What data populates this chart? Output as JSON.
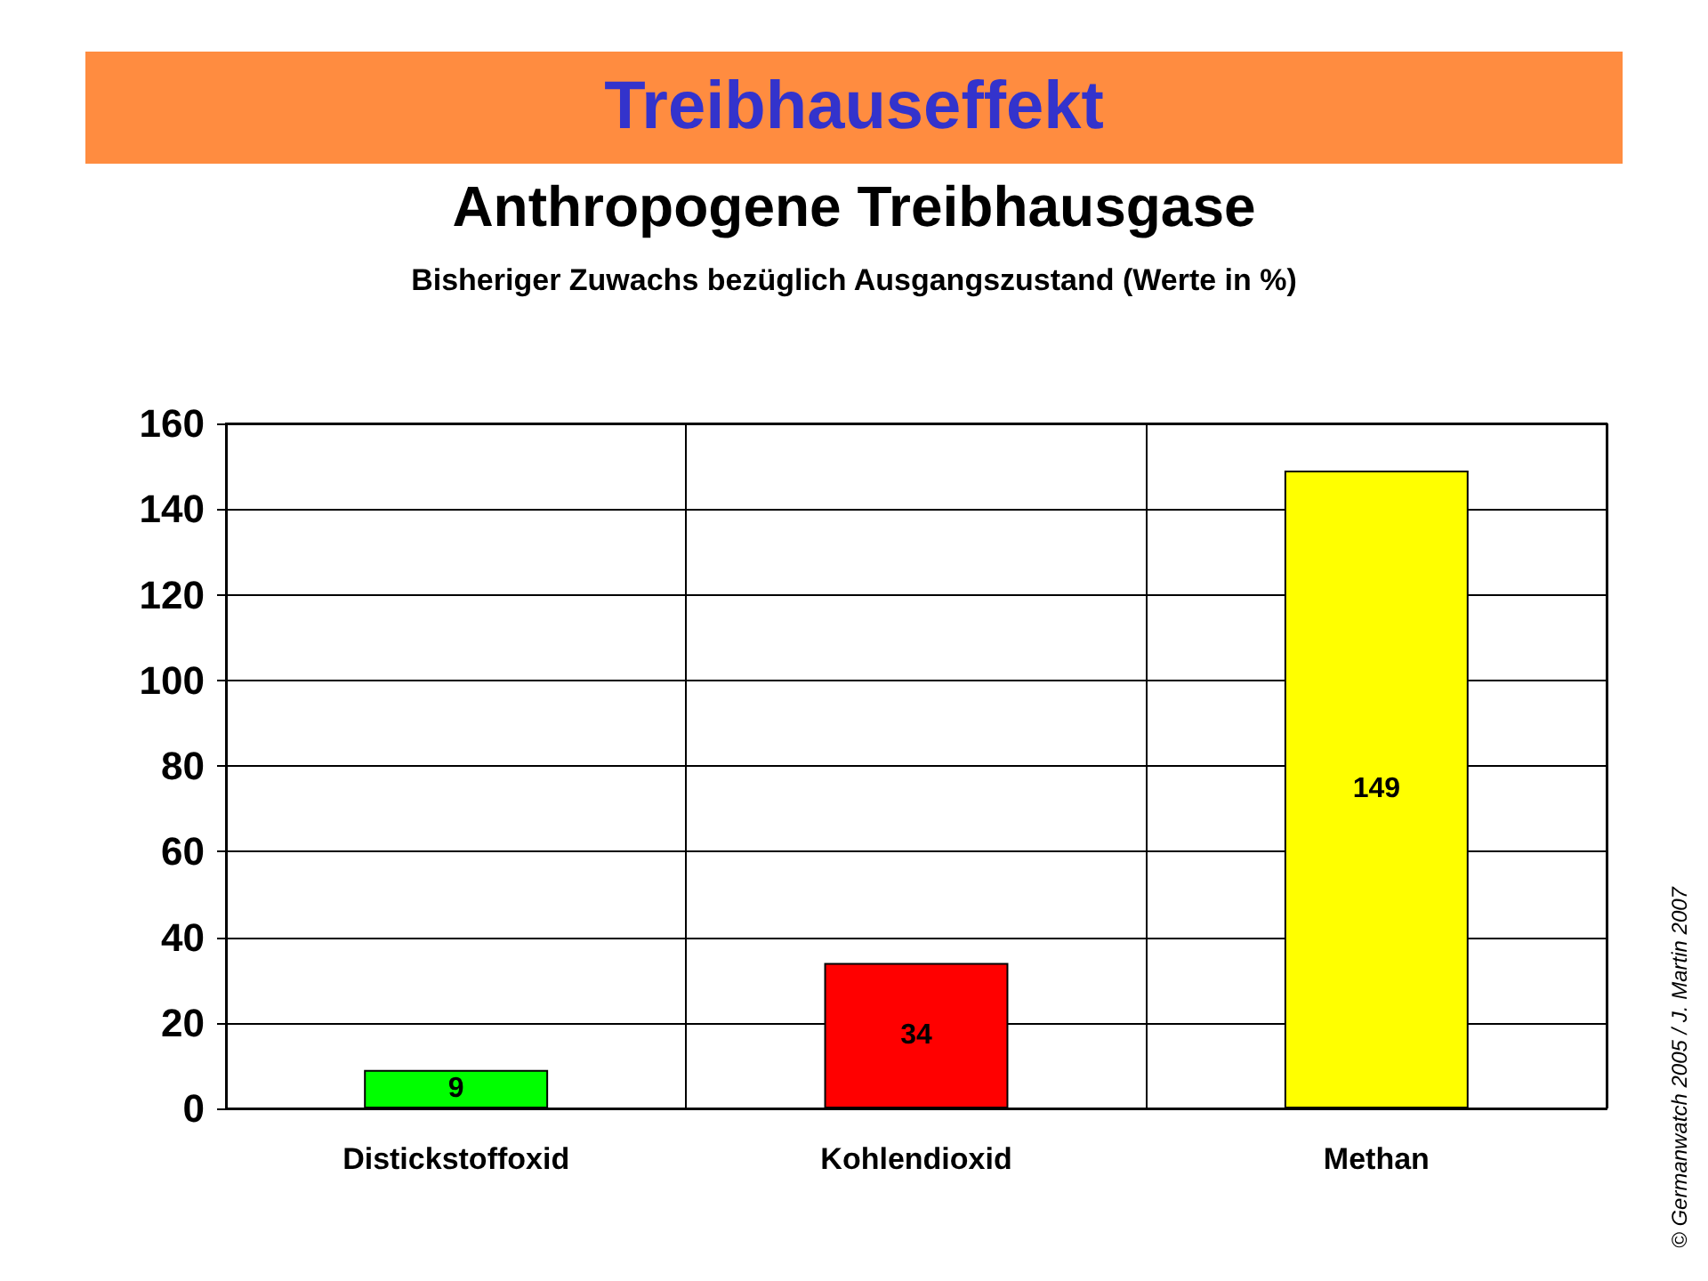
{
  "chart_data": {
    "type": "bar",
    "title": "Treibhauseffekt",
    "subtitle": "Anthropogene Treibhausgase",
    "ylabel": "Bisheriger Zuwachs bezüglich Ausgangszustand (Werte in %)",
    "categories": [
      "Distickstoffoxid",
      "Kohlendioxid",
      "Methan"
    ],
    "values": [
      9,
      34,
      149
    ],
    "colors": [
      "#00ff00",
      "#ff0000",
      "#ffff00"
    ],
    "ylim": [
      0,
      160
    ],
    "yticks": [
      0,
      20,
      40,
      60,
      80,
      100,
      120,
      140,
      160
    ],
    "grid": true,
    "data_labels": true,
    "annotations": [
      "© Germanwatch 2005 / J. Martin 2007"
    ]
  }
}
